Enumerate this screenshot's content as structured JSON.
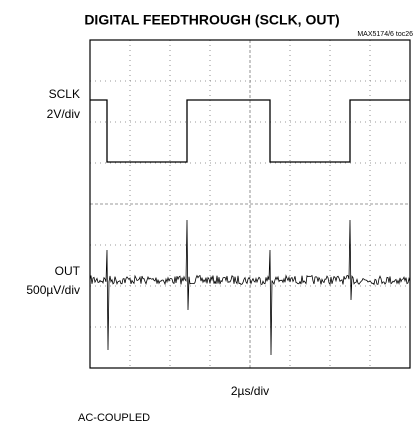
{
  "title": "DIGITAL FEEDTHROUGH (SCLK, OUT)",
  "figure_id": "MAX5174/6 toc26",
  "channels": [
    {
      "name": "SCLK",
      "scale": "2V/div"
    },
    {
      "name": "OUT",
      "scale": "500µV/div"
    }
  ],
  "time_scale": "2µs/div",
  "note": "AC-COUPLED"
}
